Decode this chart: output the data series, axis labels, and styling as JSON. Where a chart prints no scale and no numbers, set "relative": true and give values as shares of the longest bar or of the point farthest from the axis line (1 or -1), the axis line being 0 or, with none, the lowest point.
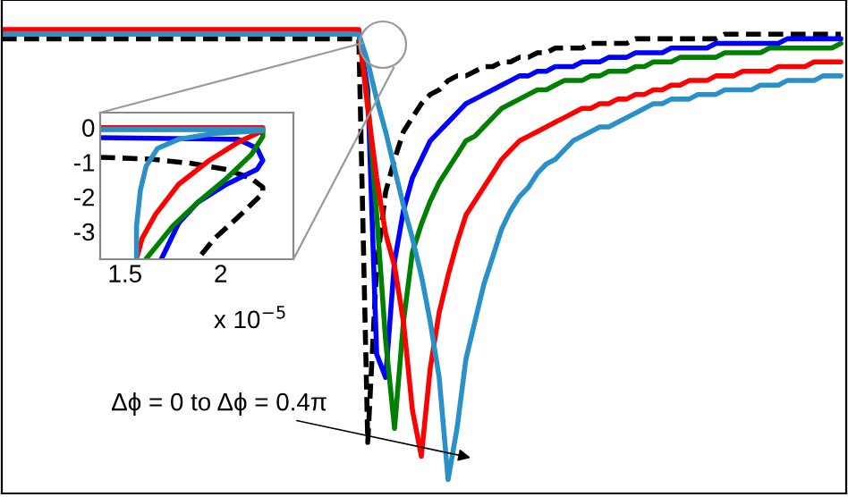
{
  "chart_data": [
    {
      "type": "line",
      "relative": true,
      "tick_labels": false,
      "legend": false,
      "grid": false,
      "annotations": [
        "Δϕ = 0 to Δϕ = 0.4π"
      ],
      "categories": [
        null,
        null,
        null,
        null,
        null,
        null,
        null,
        null,
        null,
        null,
        null,
        null,
        null,
        null,
        null,
        null,
        null,
        null,
        null,
        null,
        null,
        null,
        null,
        null,
        null,
        null,
        null,
        null,
        null,
        null,
        null,
        null,
        null,
        null,
        null,
        null,
        null,
        null,
        null,
        null,
        null,
        null,
        null,
        null,
        null,
        null,
        null,
        null,
        null,
        null,
        null,
        null,
        null,
        null,
        null,
        null,
        null,
        null,
        null,
        null,
        null,
        null,
        null,
        null,
        null,
        null,
        null,
        null,
        null,
        null,
        null,
        null,
        null,
        null,
        null,
        null,
        null,
        null,
        null,
        null,
        null,
        null,
        null,
        null,
        null,
        null,
        null,
        null,
        null,
        null,
        null,
        null,
        null,
        null,
        null
      ],
      "series": [
        {
          "color": "#000000",
          "line_style": "dashed",
          "values": [
            0.98,
            0.98,
            0.98,
            0.98,
            0.98,
            0.98,
            0.98,
            0.98,
            0.98,
            0.98,
            0.98,
            0.98,
            0.98,
            0.98,
            0.98,
            0.98,
            0.98,
            0.98,
            0.98,
            0.98,
            0.98,
            0.98,
            0.98,
            0.98,
            0.98,
            0.98,
            0.98,
            0.98,
            0.98,
            0.98,
            0.98,
            0.98,
            0.98,
            0.98,
            0.98,
            0.98,
            0.98,
            0.98,
            0.98,
            0.98,
            0.98,
            0.11,
            0.49,
            0.65,
            0.72,
            0.78,
            0.81,
            0.84,
            0.86,
            0.87,
            0.89,
            0.9,
            0.9,
            0.91,
            0.92,
            0.92,
            0.93,
            0.93,
            0.94,
            0.94,
            0.95,
            0.95,
            0.96,
            0.96,
            0.96,
            0.96,
            0.97,
            0.97,
            0.97,
            0.97,
            0.97,
            0.98,
            0.98,
            0.98,
            0.98,
            0.98,
            0.98,
            0.98,
            0.98,
            0.98,
            0.98,
            0.99,
            0.99,
            0.99,
            0.99,
            0.99,
            0.99,
            0.99,
            0.99,
            0.99,
            0.99,
            0.99,
            0.99,
            0.99,
            0.99
          ]
        },
        {
          "color": "#0000ff",
          "line_style": "solid",
          "values": [
            null,
            null,
            null,
            null,
            null,
            null,
            null,
            null,
            null,
            null,
            null,
            null,
            null,
            null,
            null,
            null,
            null,
            null,
            null,
            null,
            null,
            null,
            null,
            null,
            null,
            null,
            null,
            null,
            null,
            null,
            null,
            null,
            null,
            null,
            null,
            null,
            null,
            null,
            null,
            null,
            0.99,
            0.87,
            0.3,
            0.25,
            0.5,
            0.61,
            0.68,
            0.72,
            0.76,
            0.78,
            0.8,
            0.82,
            0.84,
            0.85,
            0.86,
            0.87,
            0.88,
            0.89,
            0.9,
            0.9,
            0.91,
            0.91,
            0.92,
            0.92,
            0.92,
            0.93,
            0.93,
            0.93,
            0.94,
            0.94,
            0.94,
            0.95,
            0.95,
            0.95,
            0.95,
            0.96,
            0.96,
            0.96,
            0.96,
            0.96,
            0.97,
            0.97,
            0.97,
            0.97,
            0.97,
            0.97,
            0.97,
            0.97,
            0.98,
            0.98,
            0.98,
            0.98,
            0.98,
            0.98,
            0.98
          ]
        },
        {
          "color": "#008000",
          "line_style": "solid",
          "values": [
            null,
            null,
            null,
            null,
            null,
            null,
            null,
            null,
            null,
            null,
            null,
            null,
            null,
            null,
            null,
            null,
            null,
            null,
            null,
            null,
            null,
            null,
            null,
            null,
            null,
            null,
            null,
            null,
            null,
            null,
            null,
            null,
            null,
            null,
            null,
            null,
            null,
            null,
            null,
            null,
            0.99,
            0.85,
            0.6,
            0.33,
            0.14,
            0.37,
            0.52,
            0.58,
            0.63,
            0.67,
            0.7,
            0.73,
            0.76,
            0.77,
            0.79,
            0.81,
            0.83,
            0.84,
            0.85,
            0.86,
            0.87,
            0.87,
            0.88,
            0.89,
            0.89,
            0.89,
            0.9,
            0.9,
            0.91,
            0.91,
            0.91,
            0.92,
            0.92,
            0.93,
            0.93,
            0.93,
            0.94,
            0.94,
            0.94,
            0.94,
            0.94,
            0.95,
            0.95,
            0.95,
            0.95,
            0.95,
            0.96,
            0.96,
            0.96,
            0.96,
            0.96,
            0.96,
            0.96,
            0.96,
            0.97
          ]
        },
        {
          "color": "#ff0000",
          "line_style": "solid",
          "values": [
            1.0,
            1.0,
            1.0,
            1.0,
            1.0,
            1.0,
            1.0,
            1.0,
            1.0,
            1.0,
            1.0,
            1.0,
            1.0,
            1.0,
            1.0,
            1.0,
            1.0,
            1.0,
            1.0,
            1.0,
            1.0,
            1.0,
            1.0,
            1.0,
            1.0,
            1.0,
            1.0,
            1.0,
            1.0,
            1.0,
            1.0,
            1.0,
            1.0,
            1.0,
            1.0,
            1.0,
            1.0,
            1.0,
            1.0,
            1.0,
            1.0,
            0.83,
            0.68,
            0.56,
            0.49,
            0.37,
            0.18,
            0.08,
            0.27,
            0.39,
            0.47,
            0.54,
            0.6,
            0.63,
            0.66,
            0.69,
            0.72,
            0.74,
            0.76,
            0.77,
            0.78,
            0.79,
            0.8,
            0.81,
            0.82,
            0.83,
            0.83,
            0.84,
            0.84,
            0.85,
            0.85,
            0.86,
            0.86,
            0.87,
            0.87,
            0.88,
            0.88,
            0.89,
            0.89,
            0.89,
            0.9,
            0.9,
            0.9,
            0.91,
            0.91,
            0.91,
            0.91,
            0.92,
            0.92,
            0.92,
            0.92,
            0.93,
            0.93,
            0.93,
            0.93
          ]
        },
        {
          "color": "#2a90c8",
          "line_style": "solid",
          "values": [
            0.99,
            0.99,
            0.99,
            0.99,
            0.99,
            0.99,
            0.99,
            0.99,
            0.99,
            0.99,
            0.99,
            0.99,
            0.99,
            0.99,
            0.99,
            0.99,
            0.99,
            0.99,
            0.99,
            0.99,
            0.99,
            0.99,
            0.99,
            0.99,
            0.99,
            0.99,
            0.99,
            0.99,
            0.99,
            0.99,
            0.99,
            0.99,
            0.99,
            0.99,
            0.99,
            0.99,
            0.99,
            0.99,
            0.99,
            0.99,
            0.99,
            0.93,
            0.85,
            0.78,
            0.7,
            0.62,
            0.55,
            0.47,
            0.37,
            0.25,
            0.03,
            0.14,
            0.29,
            0.37,
            0.45,
            0.51,
            0.57,
            0.61,
            0.64,
            0.66,
            0.69,
            0.71,
            0.72,
            0.74,
            0.76,
            0.77,
            0.78,
            0.79,
            0.79,
            0.8,
            0.81,
            0.82,
            0.83,
            0.84,
            0.84,
            0.85,
            0.85,
            0.85,
            0.86,
            0.86,
            0.86,
            0.87,
            0.87,
            0.87,
            0.87,
            0.88,
            0.88,
            0.88,
            0.89,
            0.89,
            0.89,
            0.89,
            0.9,
            0.9,
            0.9
          ]
        }
      ]
    },
    {
      "type": "line",
      "legend": false,
      "grid": false,
      "xlim": [
        1.37,
        2.38
      ],
      "ylim": [
        -3.8,
        0.43
      ],
      "xticks": [
        1.5,
        2
      ],
      "yticks": [
        0,
        -1,
        -2,
        -3
      ],
      "annotations": [
        "x 10$^{−5}$"
      ],
      "series": [
        {
          "color": "#000000",
          "line_style": "dashed",
          "x": [
            1.37,
            1.63,
            1.84,
            2.03,
            2.16,
            2.22,
            2.22,
            2.09,
            1.97,
            1.88
          ],
          "values": [
            -0.86,
            -0.91,
            -1.03,
            -1.21,
            -1.47,
            -1.72,
            -1.9,
            -2.59,
            -3.19,
            -3.79
          ]
        },
        {
          "color": "#0000ff",
          "line_style": "solid",
          "x": [
            1.37,
            2.09,
            2.19,
            2.22,
            2.19,
            2.03,
            1.88,
            1.78,
            1.72,
            1.69
          ],
          "values": [
            -0.29,
            -0.34,
            -0.6,
            -0.95,
            -1.21,
            -1.64,
            -2.16,
            -2.76,
            -3.45,
            -3.79
          ]
        },
        {
          "color": "#008000",
          "line_style": "solid",
          "x": [
            1.37,
            2.22,
            2.22,
            2.16,
            2.03,
            1.88,
            1.75,
            1.66,
            1.61
          ],
          "values": [
            -0.05,
            -0.05,
            -0.26,
            -0.78,
            -1.47,
            -2.16,
            -2.84,
            -3.45,
            -3.79
          ]
        },
        {
          "color": "#ff0000",
          "line_style": "solid",
          "x": [
            1.37,
            2.22,
            2.22,
            2.09,
            1.94,
            1.78,
            1.66,
            1.59,
            1.56
          ],
          "values": [
            0,
            0,
            -0.09,
            -0.43,
            -0.95,
            -1.64,
            -2.5,
            -3.19,
            -3.79
          ]
        },
        {
          "color": "#2a90c8",
          "line_style": "solid",
          "x": [
            1.37,
            2.22,
            2.22,
            1.97,
            1.78,
            1.67,
            1.61,
            1.58,
            1.56,
            1.56
          ],
          "values": [
            -0.05,
            -0.05,
            -0.09,
            -0.17,
            -0.34,
            -0.6,
            -1.12,
            -1.81,
            -2.84,
            -3.79
          ]
        }
      ]
    }
  ]
}
